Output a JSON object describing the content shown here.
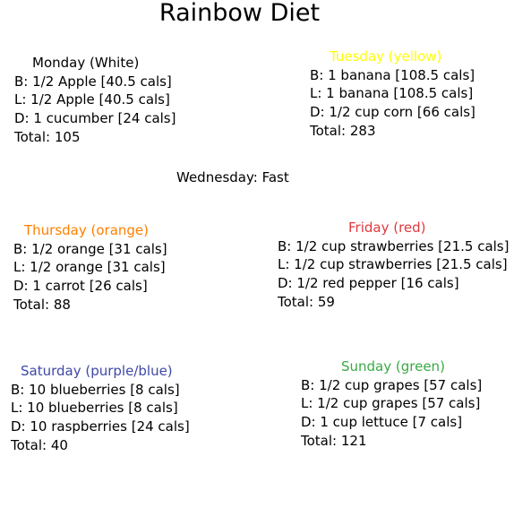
{
  "title": "Rainbow Diet",
  "days": {
    "monday": {
      "heading": "Monday (White)",
      "color": "#000000",
      "b": "B: 1/2 Apple [40.5 cals]",
      "l": "L: 1/2 Apple [40.5 cals]",
      "d": "D: 1 cucumber [24 cals]",
      "total": "Total: 105"
    },
    "tuesday": {
      "heading": "Tuesday (yellow)",
      "color": "#ffff00",
      "b": "B: 1 banana [108.5 cals]",
      "l": "L: 1 banana [108.5 cals]",
      "d": "D: 1/2 cup corn [66 cals]",
      "total": "Total: 283"
    },
    "wednesday": {
      "text": "Wednesday: Fast"
    },
    "thursday": {
      "heading": "Thursday (orange)",
      "color": "#ff7f00",
      "b": "B: 1/2 orange [31 cals]",
      "l": "L: 1/2 orange [31 cals]",
      "d": "D: 1 carrot [26 cals]",
      "total": "Total: 88"
    },
    "friday": {
      "heading": "Friday (red)",
      "color": "#e0393e",
      "b": "B: 1/2 cup strawberries [21.5 cals]",
      "l": "L: 1/2 cup strawberries [21.5 cals]",
      "d": "D: 1/2 red pepper [16 cals]",
      "total": "Total: 59"
    },
    "saturday": {
      "heading": "Saturday (purple/blue)",
      "color": "#3f48a8",
      "b": "B: 10 blueberries [8 cals]",
      "l": "L: 10 blueberries [8 cals]",
      "d": "D: 10 raspberries [24 cals]",
      "total": "Total: 40"
    },
    "sunday": {
      "heading": "Sunday (green)",
      "color": "#3aa845",
      "b": "B: 1/2 cup grapes [57 cals]",
      "l": "L: 1/2 cup grapes [57 cals]",
      "d": "D: 1 cup lettuce [7 cals]",
      "total": "Total: 121"
    }
  }
}
